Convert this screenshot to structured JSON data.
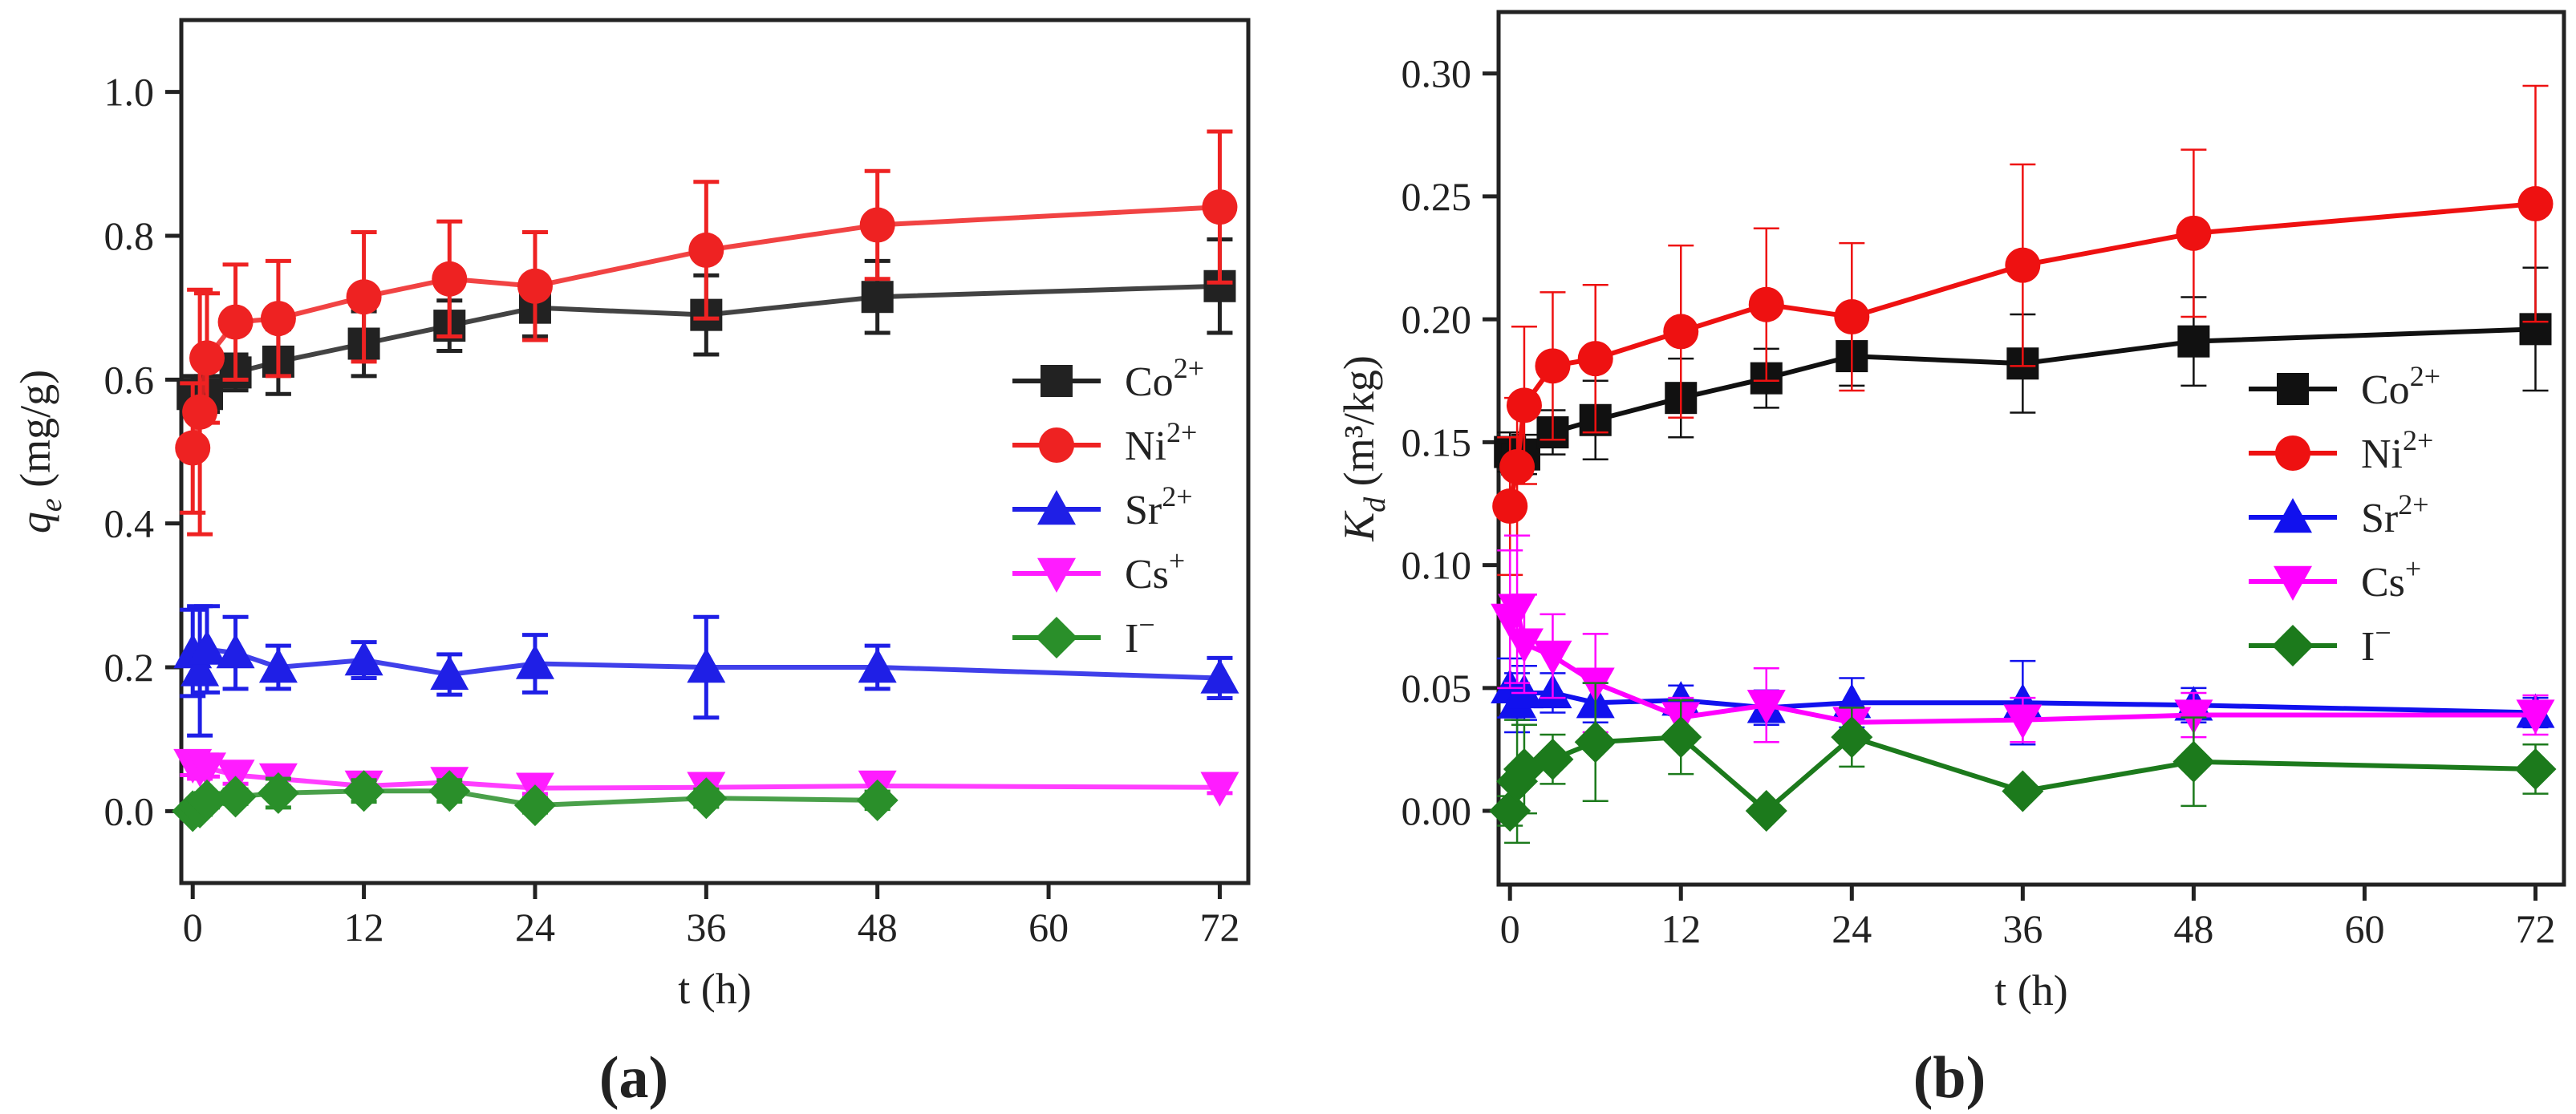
{
  "chart_data": [
    {
      "type": "line",
      "panel_label": "(a)",
      "ylabel": "q_e (mg/g)",
      "ylabel_symbol": "q",
      "ylabel_sub": "e",
      "ylabel_unit": " (mg/g)",
      "xlabel": "t (h)",
      "xlim": [
        -0.8,
        74
      ],
      "ylim": [
        -0.1,
        1.1
      ],
      "xticks": [
        0,
        12,
        24,
        36,
        48,
        60,
        72
      ],
      "yticks": [
        0.0,
        0.2,
        0.4,
        0.6,
        0.8,
        1.0
      ],
      "ytick_decimals": 1,
      "legend_position": "center-right",
      "series": [
        {
          "name": "Co2+",
          "label_base": "Co",
          "label_sup": "2+",
          "color": "#222222",
          "marker": "square",
          "x": [
            0,
            0.5,
            1,
            3,
            6,
            12,
            18,
            24,
            36,
            48,
            72
          ],
          "y": [
            0.58,
            0.57,
            0.58,
            0.61,
            0.625,
            0.65,
            0.675,
            0.7,
            0.69,
            0.715,
            0.73
          ],
          "err": [
            0.025,
            0.02,
            0.025,
            0.025,
            0.045,
            0.045,
            0.035,
            0.04,
            0.055,
            0.05,
            0.065
          ]
        },
        {
          "name": "Ni2+",
          "label_base": "Ni",
          "label_sup": "2+",
          "color": "#ee2222",
          "marker": "circle",
          "x": [
            0,
            0.5,
            1,
            3,
            6,
            12,
            18,
            24,
            36,
            48,
            72
          ],
          "y": [
            0.505,
            0.555,
            0.63,
            0.68,
            0.685,
            0.715,
            0.74,
            0.73,
            0.78,
            0.815,
            0.84
          ],
          "err": [
            0.09,
            0.17,
            0.09,
            0.08,
            0.08,
            0.09,
            0.08,
            0.075,
            0.095,
            0.075,
            0.105
          ]
        },
        {
          "name": "Sr2+",
          "label_base": "Sr",
          "label_sup": "2+",
          "color": "#1f1fe6",
          "marker": "triangle-up",
          "x": [
            0,
            0.5,
            1,
            3,
            6,
            12,
            18,
            24,
            36,
            48,
            72
          ],
          "y": [
            0.22,
            0.195,
            0.225,
            0.22,
            0.2,
            0.21,
            0.19,
            0.205,
            0.2,
            0.2,
            0.185
          ],
          "err": [
            0.06,
            0.09,
            0.06,
            0.05,
            0.03,
            0.025,
            0.028,
            0.04,
            0.07,
            0.03,
            0.028
          ]
        },
        {
          "name": "Cs+",
          "label_base": "Cs",
          "label_sup": "+",
          "color": "#ff1cff",
          "marker": "triangle-down",
          "x": [
            0,
            0.5,
            1,
            3,
            6,
            12,
            18,
            24,
            36,
            48,
            72
          ],
          "y": [
            0.065,
            0.06,
            0.06,
            0.05,
            0.045,
            0.035,
            0.04,
            0.032,
            0.033,
            0.035,
            0.033
          ],
          "err": [
            0.015,
            0.015,
            0.012,
            0.012,
            0.01,
            0.008,
            0.01,
            0.008,
            0.008,
            0.008,
            0.008
          ]
        },
        {
          "name": "I-",
          "label_base": "I",
          "label_sup": "−",
          "color": "#2a8f2a",
          "marker": "diamond",
          "x": [
            0,
            0.5,
            1,
            3,
            6,
            12,
            18,
            24,
            36,
            48
          ],
          "y": [
            0.0,
            0.005,
            0.015,
            0.02,
            0.025,
            0.028,
            0.028,
            0.008,
            0.018,
            0.015
          ],
          "err": [
            0.01,
            0.01,
            0.01,
            0.01,
            0.02,
            0.015,
            0.015,
            0.01,
            0.012,
            0.012
          ]
        }
      ]
    },
    {
      "type": "line",
      "panel_label": "(b)",
      "ylabel": "K_d (m3/kg)",
      "ylabel_symbol": "K",
      "ylabel_sub": "d",
      "ylabel_unit": " (m³/kg)",
      "xlabel": "t (h)",
      "xlim": [
        -0.8,
        74
      ],
      "ylim": [
        -0.03,
        0.325
      ],
      "xticks": [
        0,
        12,
        24,
        36,
        48,
        60,
        72
      ],
      "yticks": [
        0.0,
        0.05,
        0.1,
        0.15,
        0.2,
        0.25,
        0.3
      ],
      "ytick_decimals": 2,
      "legend_position": "center-right",
      "series": [
        {
          "name": "Co2+",
          "label_base": "Co",
          "label_sup": "2+",
          "color": "#111111",
          "marker": "square",
          "x": [
            0,
            0.5,
            1,
            3,
            6,
            12,
            18,
            24,
            36,
            48,
            72
          ],
          "y": [
            0.146,
            0.143,
            0.145,
            0.154,
            0.159,
            0.168,
            0.176,
            0.185,
            0.182,
            0.191,
            0.196
          ],
          "err": [
            0.008,
            0.007,
            0.008,
            0.009,
            0.016,
            0.016,
            0.012,
            0.012,
            0.02,
            0.018,
            0.025
          ]
        },
        {
          "name": "Ni2+",
          "label_base": "Ni",
          "label_sup": "2+",
          "color": "#ee1111",
          "marker": "circle",
          "x": [
            0,
            0.5,
            1,
            3,
            6,
            12,
            18,
            24,
            36,
            48,
            72
          ],
          "y": [
            0.124,
            0.14,
            0.165,
            0.181,
            0.184,
            0.195,
            0.206,
            0.201,
            0.222,
            0.235,
            0.247
          ],
          "err": [
            0.028,
            0.028,
            0.032,
            0.03,
            0.03,
            0.035,
            0.031,
            0.03,
            0.041,
            0.034,
            0.048
          ]
        },
        {
          "name": "Sr2+",
          "label_base": "Sr",
          "label_sup": "2+",
          "color": "#1111ee",
          "marker": "triangle-up",
          "x": [
            0,
            0.5,
            1,
            3,
            6,
            12,
            18,
            24,
            36,
            48,
            72
          ],
          "y": [
            0.05,
            0.044,
            0.048,
            0.048,
            0.044,
            0.045,
            0.042,
            0.044,
            0.044,
            0.043,
            0.04
          ],
          "err": [
            0.012,
            0.012,
            0.011,
            0.008,
            0.008,
            0.006,
            0.007,
            0.01,
            0.017,
            0.007,
            0.006
          ]
        },
        {
          "name": "Cs+",
          "label_base": "Cs",
          "label_sup": "+",
          "color": "#ff00ff",
          "marker": "triangle-down",
          "x": [
            0,
            0.5,
            1,
            3,
            6,
            12,
            18,
            24,
            36,
            48,
            72
          ],
          "y": [
            0.078,
            0.082,
            0.068,
            0.063,
            0.052,
            0.038,
            0.043,
            0.036,
            0.037,
            0.039,
            0.039
          ],
          "err": [
            0.028,
            0.03,
            0.02,
            0.017,
            0.02,
            0.008,
            0.015,
            0.006,
            0.009,
            0.009,
            0.008
          ]
        },
        {
          "name": "I-",
          "label_base": "I",
          "label_sup": "−",
          "color": "#1c7a1c",
          "marker": "diamond",
          "x": [
            0,
            0.5,
            1,
            3,
            6,
            12,
            18,
            24,
            36,
            48,
            72
          ],
          "y": [
            0.0,
            0.012,
            0.017,
            0.021,
            0.028,
            0.03,
            0.0,
            0.03,
            0.008,
            0.02,
            0.017
          ],
          "err": [
            0.006,
            0.025,
            0.018,
            0.01,
            0.024,
            0.015,
            0.0,
            0.012,
            0.0,
            0.018,
            0.01
          ]
        }
      ]
    }
  ]
}
